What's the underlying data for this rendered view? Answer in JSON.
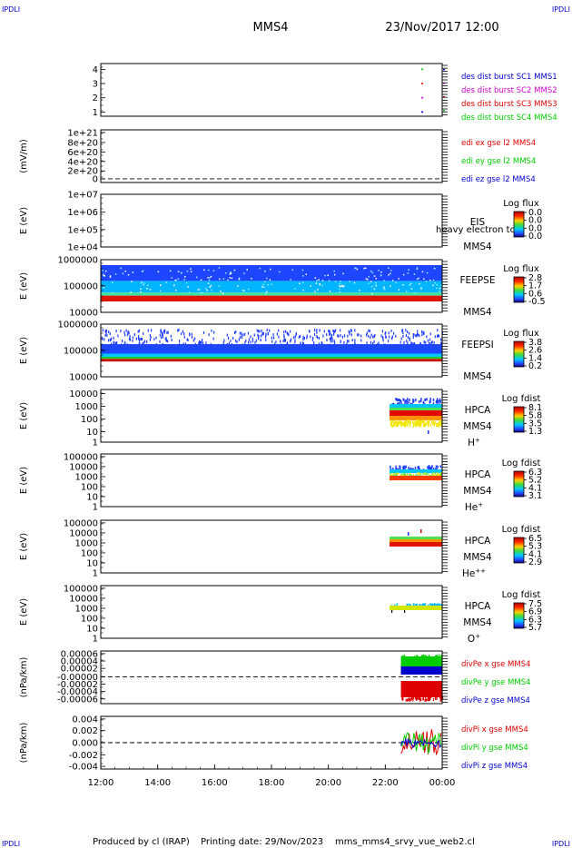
{
  "header": {
    "corner_tl": "IPDLI",
    "corner_tr": "IPDLI",
    "corner_bl": "IPDLI",
    "corner_br": "IPDLI",
    "title": "MMS4",
    "datetime": "23/Nov/2017 12:00"
  },
  "footer": {
    "produced_by": "Produced by cl (IRAP)",
    "printing_date": "Printing date: 29/Nov/2023",
    "script_name": "mms_mms4_srvy_vue_web2.cl"
  },
  "colors": {
    "blue": "#0000cc",
    "magenta": "#cc00cc",
    "red": "#dd0000",
    "green": "#00cc00",
    "yellow": "#e8e800"
  },
  "chart_data": {
    "type": "multi-panel-spectrogram",
    "x_ticks": [
      "12:00",
      "14:00",
      "16:00",
      "18:00",
      "20:00",
      "22:00",
      "00:00"
    ],
    "x_range_hours": [
      12,
      24
    ],
    "panels": [
      {
        "id": "burst",
        "type": "scatter",
        "ylabel": "",
        "yticks": [
          "4",
          "3",
          "2",
          "1"
        ],
        "ylim": [
          0.7,
          4.4
        ],
        "legend": [
          {
            "label": "des dist burst SC1 MMS1",
            "color": "#0000cc"
          },
          {
            "label": "des dist burst SC2 MMS2",
            "color": "#cc00cc"
          },
          {
            "label": "des dist burst SC3 MMS3",
            "color": "#dd0000"
          },
          {
            "label": "des dist burst SC4 MMS4",
            "color": "#00cc00"
          }
        ],
        "points": [
          {
            "x": 23.3,
            "y": 4,
            "color": "#00cc00"
          },
          {
            "x": 23.3,
            "y": 3,
            "color": "#dd0000"
          },
          {
            "x": 23.3,
            "y": 2,
            "color": "#cc00cc"
          },
          {
            "x": 23.3,
            "y": 1,
            "color": "#0000cc"
          }
        ]
      },
      {
        "id": "edi",
        "type": "line",
        "ylabel": "(mV/m)",
        "yticks": [
          "1e+21",
          "8e+20",
          "6e+20",
          "4e+20",
          "2e+20",
          "0"
        ],
        "ylim": [
          0,
          1e+21
        ],
        "legend": [
          {
            "label": "edi ex gse l2 MMS4",
            "color": "#dd0000"
          },
          {
            "label": "edi ey gse l2 MMS4",
            "color": "#00cc00"
          },
          {
            "label": "edi ez gse l2 MMS4",
            "color": "#0000cc"
          }
        ]
      },
      {
        "id": "eis",
        "type": "heatmap",
        "ylabel": "E (eV)",
        "yticks": [
          "1e+07",
          "1e+06",
          "1e+05",
          "1e+04"
        ],
        "name_lines": [
          "EIS",
          "MMS4"
        ],
        "overlay_text": "heavy electron to",
        "colorbar": {
          "title": "Log flux",
          "ticks": [
            "0.0",
            "0.0",
            "0.0",
            "0.0"
          ]
        }
      },
      {
        "id": "feepse",
        "type": "heatmap",
        "ylabel": "E (eV)",
        "yticks": [
          "1000000",
          "100000",
          "10000"
        ],
        "name_lines": [
          "FEEPSE",
          "MMS4"
        ],
        "colorbar": {
          "title": "Log flux",
          "ticks": [
            "2.8",
            "1.7",
            "0.6",
            "-0.5"
          ]
        },
        "x_coverage": [
          12,
          24
        ]
      },
      {
        "id": "feepsi",
        "type": "heatmap",
        "ylabel": "E (eV)",
        "yticks": [
          "1000000",
          "100000",
          "10000"
        ],
        "name_lines": [
          "FEEPSI",
          "MMS4"
        ],
        "colorbar": {
          "title": "Log flux",
          "ticks": [
            "3.8",
            "2.6",
            "1.4",
            "0.2"
          ]
        },
        "x_coverage": [
          12,
          24
        ]
      },
      {
        "id": "hpca_h",
        "type": "heatmap",
        "ylabel": "E (eV)",
        "yticks": [
          "10000",
          "1000",
          "100",
          "10",
          "1"
        ],
        "name_lines": [
          "HPCA",
          "MMS4"
        ],
        "species": "H",
        "species_sup": "+",
        "colorbar": {
          "title": "Log fdist",
          "ticks": [
            "8.1",
            "5.8",
            "3.5",
            "1.3"
          ]
        },
        "x_coverage": [
          22.15,
          24
        ]
      },
      {
        "id": "hpca_he",
        "type": "heatmap",
        "ylabel": "E (eV)",
        "yticks": [
          "100000",
          "10000",
          "1000",
          "100",
          "10",
          "1"
        ],
        "name_lines": [
          "HPCA",
          "MMS4"
        ],
        "species": "He",
        "species_sup": "+",
        "colorbar": {
          "title": "Log fdist",
          "ticks": [
            "6.3",
            "5.2",
            "4.1",
            "3.1"
          ]
        },
        "x_coverage": [
          22.15,
          24
        ]
      },
      {
        "id": "hpca_hepp",
        "type": "heatmap",
        "ylabel": "E (eV)",
        "yticks": [
          "100000",
          "10000",
          "1000",
          "100",
          "10",
          "1"
        ],
        "name_lines": [
          "HPCA",
          "MMS4"
        ],
        "species": "He",
        "species_sup": "++",
        "colorbar": {
          "title": "Log fdist",
          "ticks": [
            "6.5",
            "5.3",
            "4.1",
            "2.9"
          ]
        },
        "x_coverage": [
          22.15,
          24
        ]
      },
      {
        "id": "hpca_o",
        "type": "heatmap",
        "ylabel": "E (eV)",
        "yticks": [
          "100000",
          "10000",
          "1000",
          "100",
          "10",
          "1"
        ],
        "name_lines": [
          "HPCA",
          "MMS4"
        ],
        "species": "O",
        "species_sup": "+",
        "colorbar": {
          "title": "Log fdist",
          "ticks": [
            "7.5",
            "6.9",
            "6.3",
            "5.7"
          ]
        },
        "x_coverage": [
          22.15,
          24
        ]
      },
      {
        "id": "divpe",
        "type": "line",
        "ylabel": "(nPa/km)",
        "yticks": [
          "0.00006",
          "0.00004",
          "0.00002",
          "-0.00000",
          "-0.00002",
          "-0.00004",
          "-0.00006"
        ],
        "ylim": [
          -7e-05,
          7e-05
        ],
        "legend": [
          {
            "label": "divPe x gse MMS4",
            "color": "#dd0000"
          },
          {
            "label": "divPe y gse MMS4",
            "color": "#00cc00"
          },
          {
            "label": "divPe z gse MMS4",
            "color": "#0000cc"
          }
        ],
        "x_coverage": [
          22.55,
          24
        ]
      },
      {
        "id": "divpi",
        "type": "line",
        "ylabel": "(nPa/km)",
        "yticks": [
          "0.004",
          "0.002",
          "0.000",
          "-0.002",
          "-0.004"
        ],
        "ylim": [
          -0.0048,
          0.0048
        ],
        "legend": [
          {
            "label": "divPi x gse MMS4",
            "color": "#dd0000"
          },
          {
            "label": "divPi y gse MMS4",
            "color": "#00cc00"
          },
          {
            "label": "divPi z gse MMS4",
            "color": "#0000cc"
          }
        ],
        "x_coverage": [
          22.55,
          24
        ]
      }
    ]
  }
}
